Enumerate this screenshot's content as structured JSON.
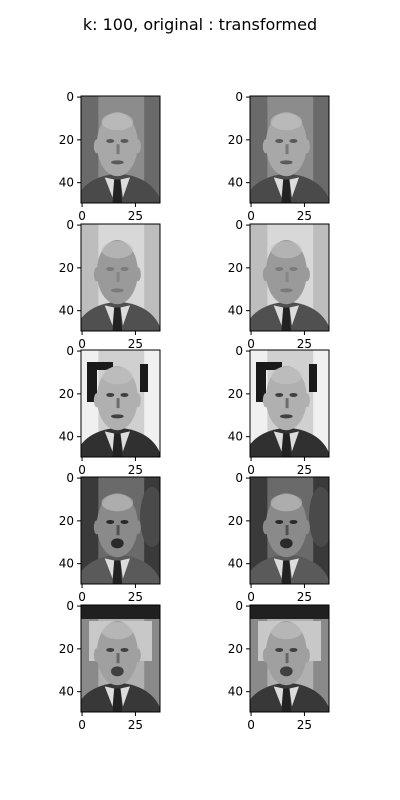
{
  "chart_data": {
    "type": "image_grid",
    "title": "k: 100,   original : transformed",
    "rows": 5,
    "cols": 2,
    "column_labels": [
      "original",
      "transformed"
    ],
    "image_width": 37,
    "image_height": 50,
    "xticks": [
      0,
      25
    ],
    "yticks": [
      0,
      20,
      40
    ],
    "x_tick_labels_shown_rows": [
      0,
      1,
      2,
      3,
      4
    ],
    "cmap": "gray",
    "panels": [
      {
        "row": 0,
        "subject": "face-1",
        "tone": "mid-gray",
        "background": "dark"
      },
      {
        "row": 1,
        "subject": "face-2",
        "tone": "soft-gray",
        "background": "light"
      },
      {
        "row": 2,
        "subject": "face-3",
        "tone": "high-contrast",
        "background": "framed"
      },
      {
        "row": 3,
        "subject": "face-4",
        "tone": "dark",
        "background": "dark-figure"
      },
      {
        "row": 4,
        "subject": "face-5",
        "tone": "gray",
        "background": "dark-top"
      }
    ]
  }
}
